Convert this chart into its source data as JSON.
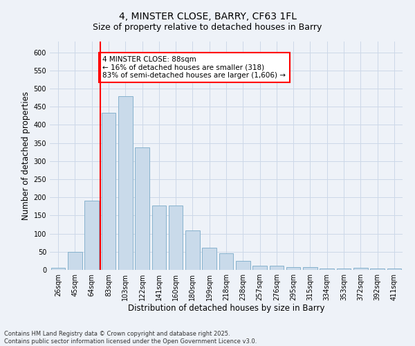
{
  "title_line1": "4, MINSTER CLOSE, BARRY, CF63 1FL",
  "title_line2": "Size of property relative to detached houses in Barry",
  "xlabel": "Distribution of detached houses by size in Barry",
  "ylabel": "Number of detached properties",
  "categories": [
    "26sqm",
    "45sqm",
    "64sqm",
    "83sqm",
    "103sqm",
    "122sqm",
    "141sqm",
    "160sqm",
    "180sqm",
    "199sqm",
    "218sqm",
    "238sqm",
    "257sqm",
    "276sqm",
    "295sqm",
    "315sqm",
    "334sqm",
    "353sqm",
    "372sqm",
    "392sqm",
    "411sqm"
  ],
  "values": [
    5,
    50,
    190,
    433,
    480,
    338,
    178,
    178,
    108,
    62,
    45,
    25,
    11,
    11,
    8,
    7,
    4,
    4,
    5,
    3,
    3
  ],
  "bar_color": "#c9daea",
  "bar_edge_color": "#7aaac8",
  "grid_color": "#ccd8e8",
  "background_color": "#eef2f8",
  "vline_x_index": 3,
  "vline_color": "red",
  "annotation_title": "4 MINSTER CLOSE: 88sqm",
  "annotation_line1": "← 16% of detached houses are smaller (318)",
  "annotation_line2": "83% of semi-detached houses are larger (1,606) →",
  "annotation_box_color": "white",
  "annotation_box_edge_color": "red",
  "ylim": [
    0,
    630
  ],
  "yticks": [
    0,
    50,
    100,
    150,
    200,
    250,
    300,
    350,
    400,
    450,
    500,
    550,
    600
  ],
  "footnote": "Contains HM Land Registry data © Crown copyright and database right 2025.\nContains public sector information licensed under the Open Government Licence v3.0.",
  "title_fontsize": 10,
  "subtitle_fontsize": 9,
  "tick_fontsize": 7,
  "label_fontsize": 8.5,
  "annot_fontsize": 7.5
}
